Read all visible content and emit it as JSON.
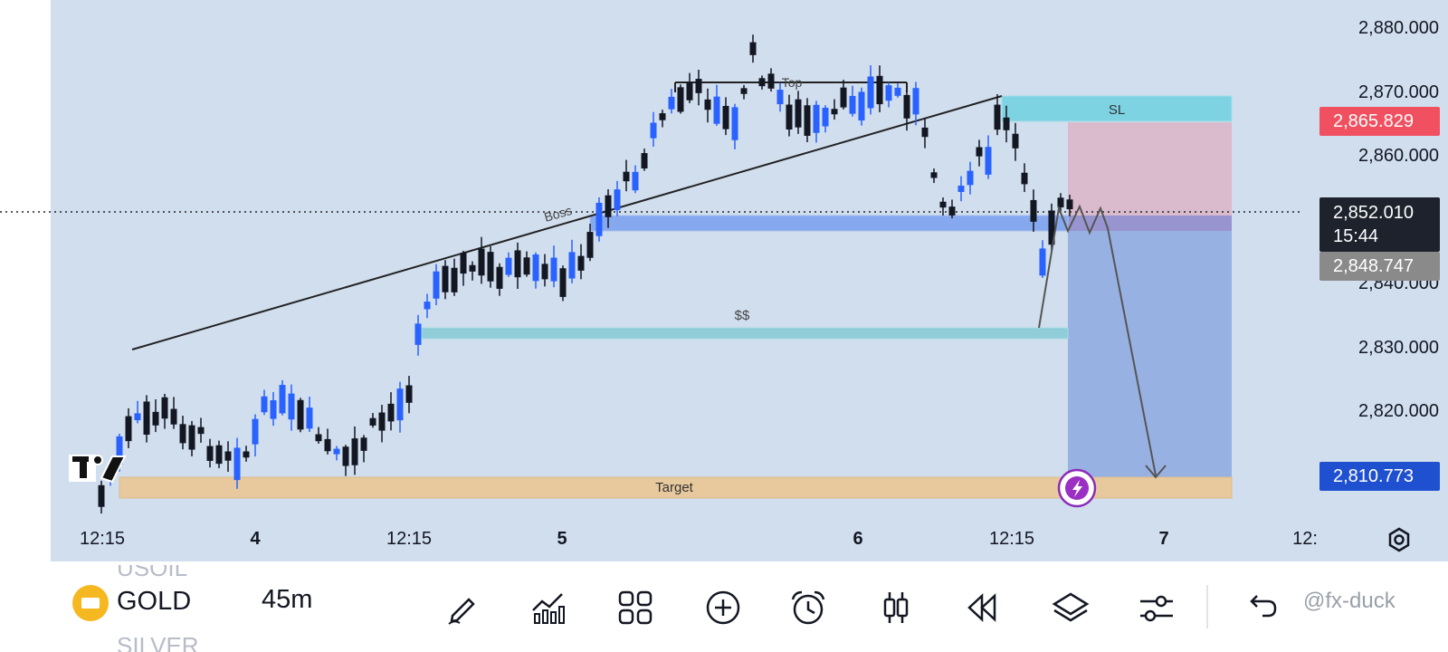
{
  "chart": {
    "price_axis": [
      "2,880.000",
      "2,870.000",
      "2,860.000",
      "2,840.000",
      "2,830.000",
      "2,820.000"
    ],
    "price_values": [
      2880,
      2870,
      2860,
      2840,
      2830,
      2820
    ],
    "tags": {
      "sl_price": "2,865.829",
      "current_price": "2,852.010",
      "countdown": "15:44",
      "prev_price": "2,848.747",
      "target_price": "2,810.773"
    },
    "time_axis": [
      "12:15",
      "4",
      "12:15",
      "5",
      "6",
      "12:15",
      "7",
      "12:"
    ],
    "annotations": {
      "sl": "SL",
      "target": "Target",
      "liquidity": "$$",
      "bos": "Boss",
      "top": "Top"
    },
    "colors": {
      "background": "#d1deee",
      "bull": "#2962ff",
      "bear": "#131722",
      "sl_zone": "#7ed3e3",
      "risk_zone": "#dcb5c7",
      "reward_zone": "#95aee2",
      "target_zone": "#e8c99d",
      "sl_tag": "#f05060",
      "target_tag": "#1e50d0"
    }
  },
  "toolbar": {
    "symbol": "GOLD",
    "symbol_above": "USOIL",
    "symbol_below": "SILVER",
    "interval": "45m",
    "watermark": "@fx-duck",
    "icons": [
      "pencil-icon",
      "indicators-icon",
      "layout-grid-icon",
      "add-icon",
      "alarm-icon",
      "candle-style-icon",
      "replay-icon",
      "layers-icon",
      "settings-sliders-icon",
      "undo-icon"
    ]
  }
}
